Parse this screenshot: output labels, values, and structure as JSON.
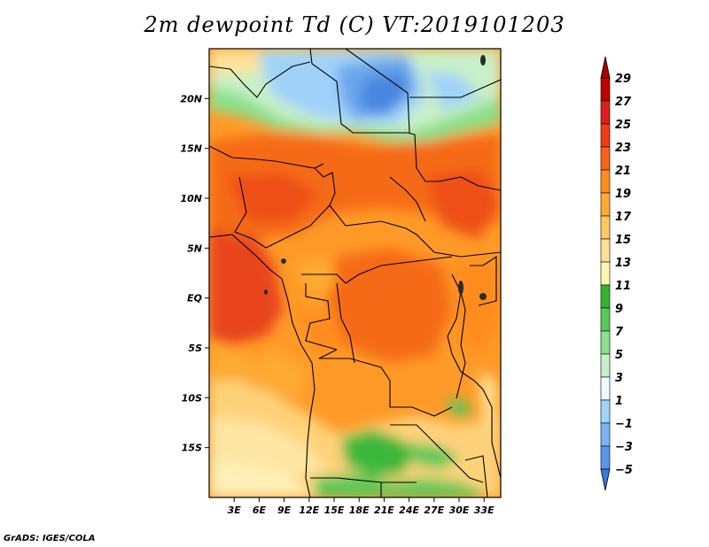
{
  "title": "2m dewpoint Td (C) VT:2019101203",
  "credit": "GrADS: IGES/COLA",
  "map": {
    "projection": "lat-lon",
    "lon_range": [
      0,
      35
    ],
    "lat_range": [
      -20,
      25
    ],
    "lat_ticks": [
      {
        "value": 20,
        "label": "20N"
      },
      {
        "value": 15,
        "label": "15N"
      },
      {
        "value": 10,
        "label": "10N"
      },
      {
        "value": 5,
        "label": "5N"
      },
      {
        "value": 0,
        "label": "EQ"
      },
      {
        "value": -5,
        "label": "5S"
      },
      {
        "value": -10,
        "label": "10S"
      },
      {
        "value": -15,
        "label": "15S"
      }
    ],
    "lon_ticks": [
      {
        "value": 3,
        "label": "3E"
      },
      {
        "value": 6,
        "label": "6E"
      },
      {
        "value": 9,
        "label": "9E"
      },
      {
        "value": 12,
        "label": "12E"
      },
      {
        "value": 15,
        "label": "15E"
      },
      {
        "value": 18,
        "label": "18E"
      },
      {
        "value": 21,
        "label": "21E"
      },
      {
        "value": 24,
        "label": "24E"
      },
      {
        "value": 27,
        "label": "27E"
      },
      {
        "value": 30,
        "label": "30E"
      },
      {
        "value": 33,
        "label": "33E"
      }
    ]
  },
  "colorbar": {
    "levels": [
      "29",
      "27",
      "25",
      "23",
      "21",
      "19",
      "17",
      "15",
      "13",
      "11",
      "9",
      "7",
      "5",
      "3",
      "1",
      "−1",
      "−3",
      "−5"
    ],
    "colors": [
      "#a50000",
      "#c00000",
      "#dd1e1e",
      "#f03c14",
      "#fa6414",
      "#ff8c1e",
      "#ffaa32",
      "#ffc864",
      "#ffe196",
      "#fff5b4",
      "#32b432",
      "#5ac85a",
      "#8ce08c",
      "#c8f0c8",
      "#ebfaff",
      "#a0d2fa",
      "#78b4f0",
      "#5a96e6",
      "#3c78dc"
    ]
  }
}
